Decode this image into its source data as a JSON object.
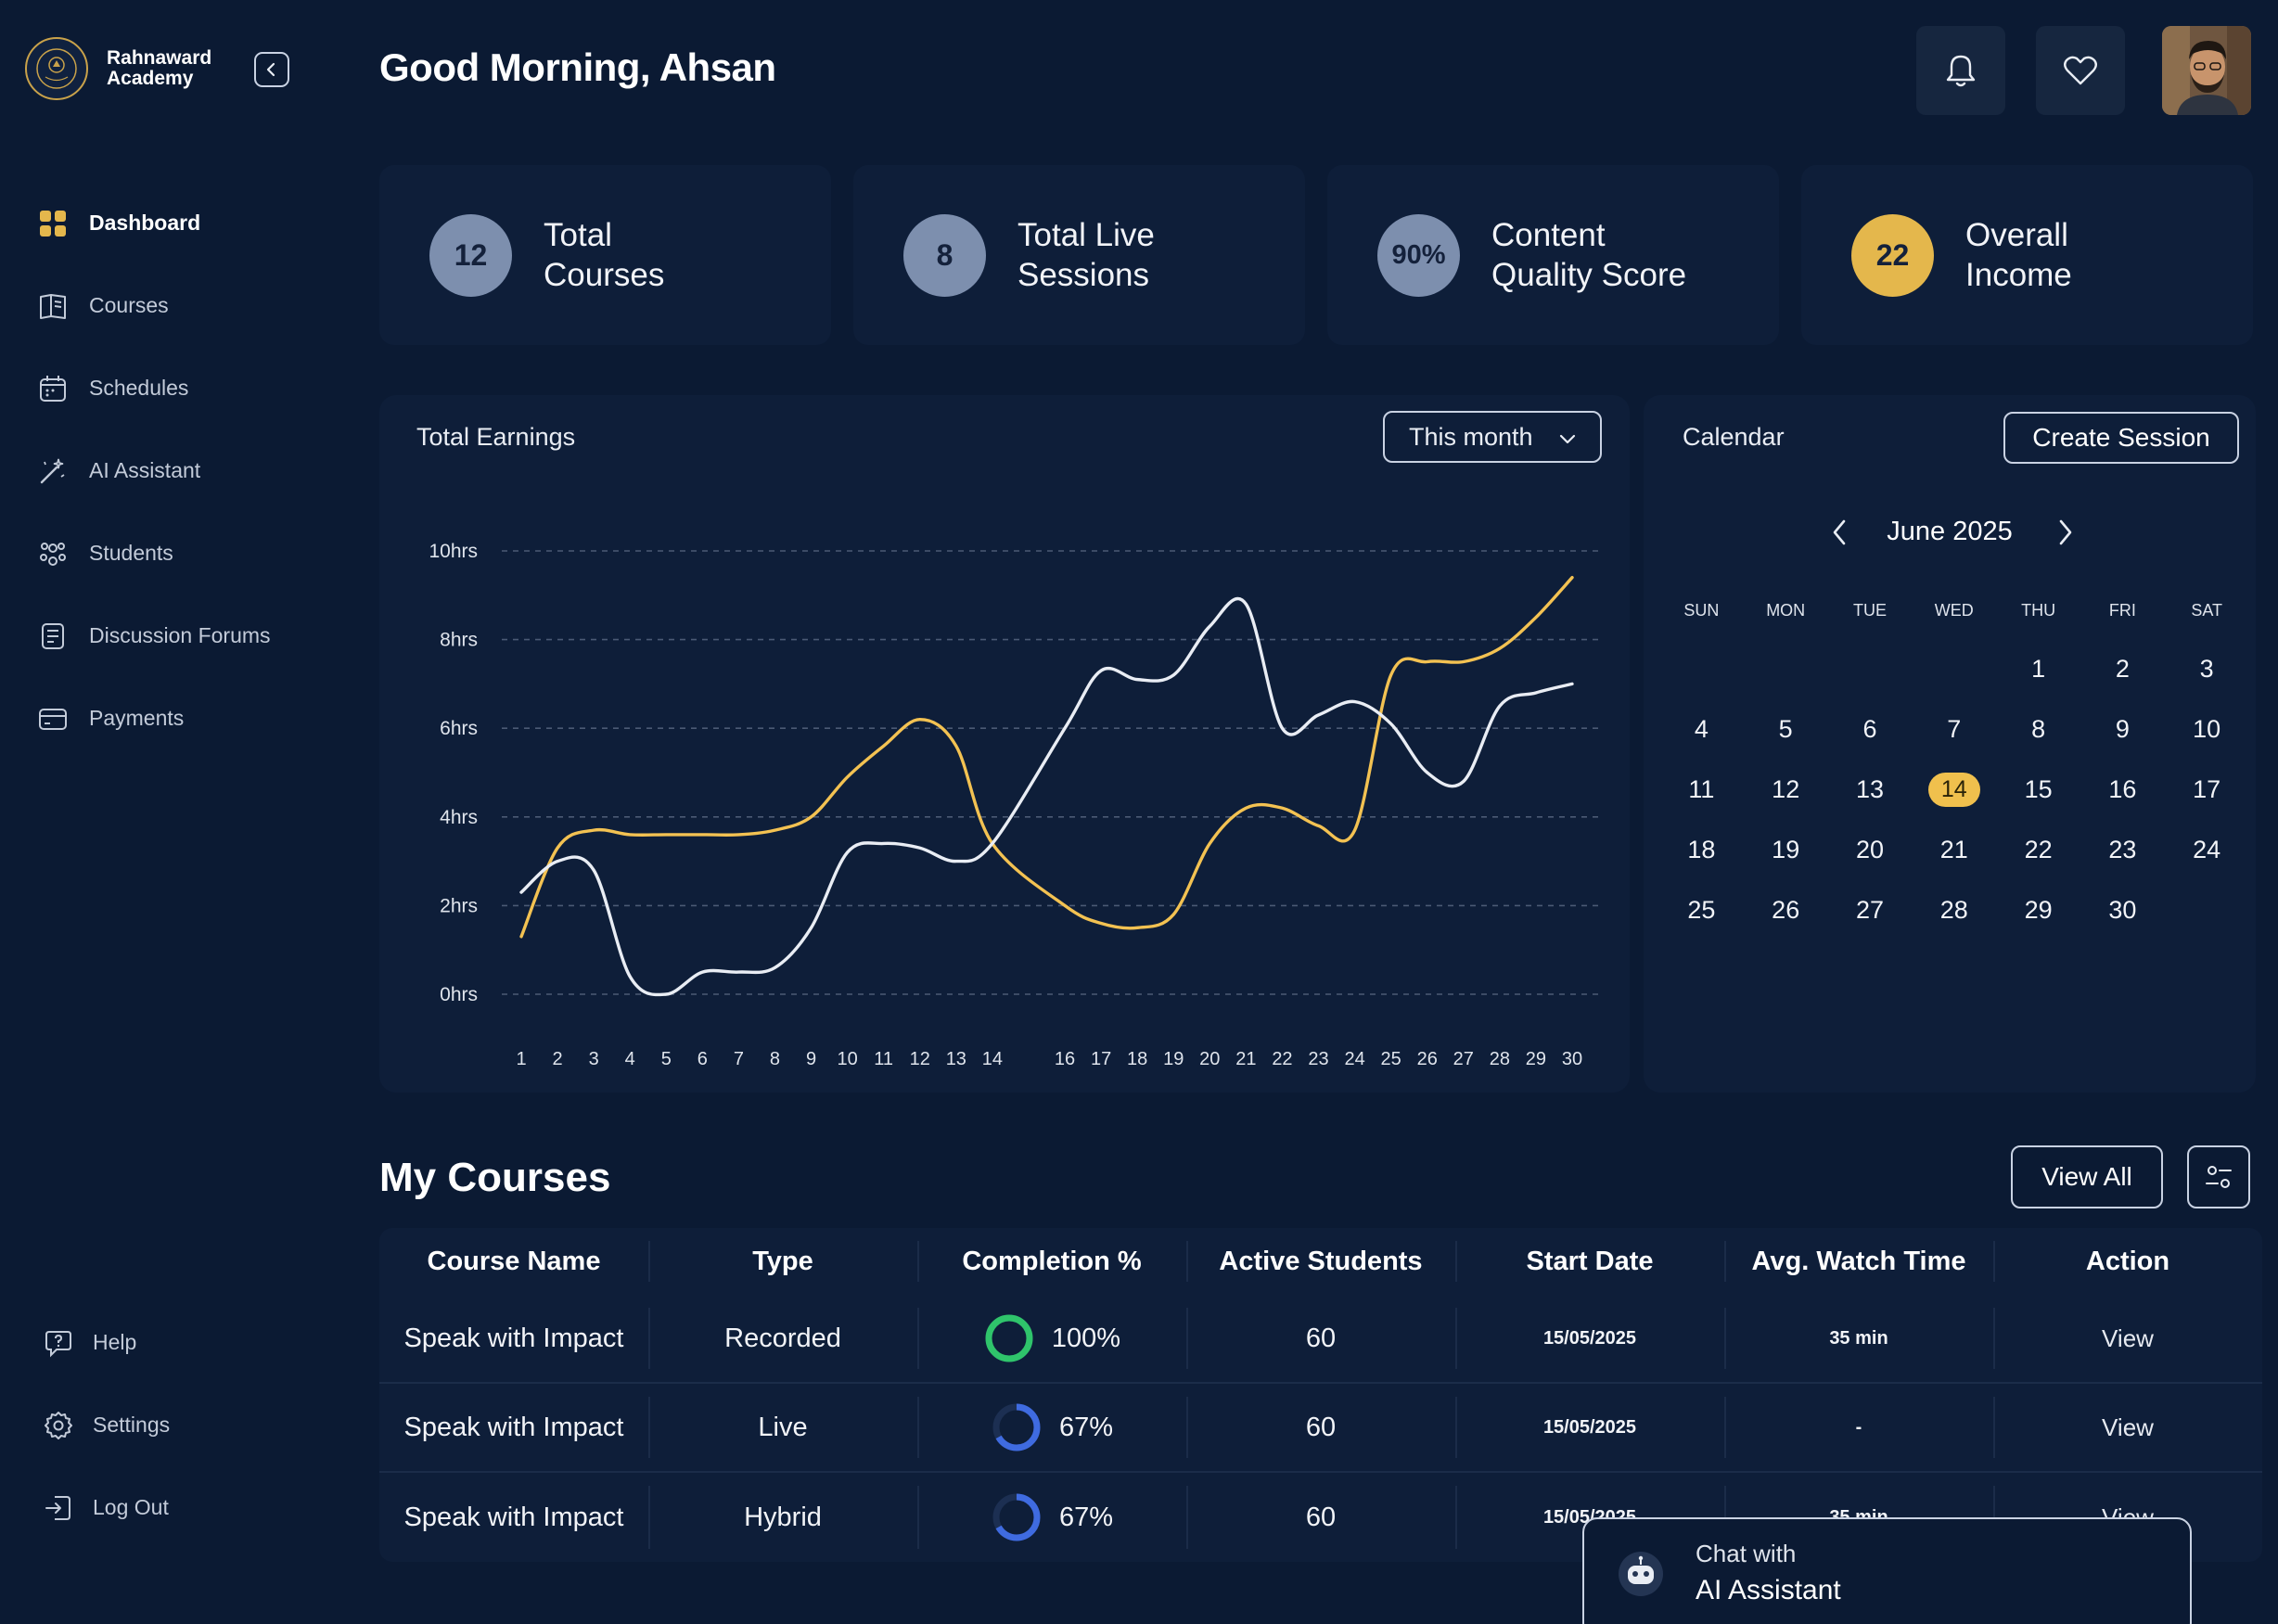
{
  "brand": {
    "name_line1": "Rahnaward",
    "name_line2": "Academy",
    "gold": "#e4b74c"
  },
  "sidebar": {
    "items": [
      {
        "label": "Dashboard",
        "icon": "grid-icon"
      },
      {
        "label": "Courses",
        "icon": "book-icon"
      },
      {
        "label": "Schedules",
        "icon": "calendar-icon"
      },
      {
        "label": "AI Assistant",
        "icon": "magic-wand-icon"
      },
      {
        "label": "Students",
        "icon": "users-icon"
      },
      {
        "label": "Discussion Forums",
        "icon": "document-icon"
      },
      {
        "label": "Payments",
        "icon": "card-icon"
      }
    ],
    "bottom": [
      {
        "label": "Help",
        "icon": "help-icon"
      },
      {
        "label": "Settings",
        "icon": "gear-icon"
      },
      {
        "label": "Log Out",
        "icon": "logout-icon"
      }
    ]
  },
  "header": {
    "greeting": "Good Morning, Ahsan"
  },
  "stats": [
    {
      "value": "12",
      "line1": "Total",
      "line2": "Courses"
    },
    {
      "value": "8",
      "line1": "Total Live",
      "line2": "Sessions"
    },
    {
      "value": "90%",
      "line1": "Content",
      "line2": "Quality Score"
    },
    {
      "value": "22",
      "line1": "Overall",
      "line2": "Income"
    }
  ],
  "earnings": {
    "title": "Total Earnings",
    "filter": "This month"
  },
  "chart_data": {
    "type": "line",
    "title": "Total Earnings",
    "y_tick_labels": [
      "0hrs",
      "2hrs",
      "4hrs",
      "6hrs",
      "8hrs",
      "10hrs"
    ],
    "ylim": [
      0,
      10
    ],
    "x": [
      1,
      2,
      3,
      4,
      5,
      6,
      7,
      8,
      9,
      10,
      11,
      12,
      13,
      14,
      16,
      17,
      18,
      19,
      20,
      21,
      22,
      23,
      24,
      25,
      26,
      27,
      28,
      29,
      30
    ],
    "series": [
      {
        "name": "gold",
        "color": "#f3c252",
        "values": [
          1.3,
          3.3,
          3.7,
          3.6,
          3.6,
          3.6,
          3.6,
          3.7,
          4.0,
          4.9,
          5.6,
          6.2,
          5.6,
          3.4,
          2.0,
          1.6,
          1.5,
          1.8,
          3.4,
          4.2,
          4.2,
          3.8,
          3.7,
          7.2,
          7.5,
          7.5,
          7.8,
          8.5,
          9.4
        ]
      },
      {
        "name": "white",
        "color": "#e9edf4",
        "values": [
          2.3,
          3.0,
          2.8,
          0.4,
          0.0,
          0.5,
          0.5,
          0.6,
          1.5,
          3.2,
          3.4,
          3.3,
          3.0,
          3.4,
          6.0,
          7.3,
          7.1,
          7.2,
          8.3,
          8.8,
          6.0,
          6.3,
          6.6,
          6.1,
          5.0,
          4.8,
          6.5,
          6.8,
          7.0
        ]
      }
    ]
  },
  "calendar": {
    "title": "Calendar",
    "create_label": "Create Session",
    "month_label": "June 2025",
    "weekdays": [
      "SUN",
      "MON",
      "TUE",
      "WED",
      "THU",
      "FRI",
      "SAT"
    ],
    "weeks": [
      [
        "",
        "",
        "",
        "",
        "1",
        "2",
        "3"
      ],
      [
        "4",
        "5",
        "6",
        "7",
        "8",
        "9",
        "10"
      ],
      [
        "11",
        "12",
        "13",
        "14",
        "15",
        "16",
        "17"
      ],
      [
        "18",
        "19",
        "20",
        "21",
        "22",
        "23",
        "24"
      ],
      [
        "25",
        "26",
        "27",
        "28",
        "29",
        "30",
        ""
      ]
    ],
    "today": "14",
    "highlight": "#f0c04d"
  },
  "courses": {
    "title": "My Courses",
    "view_all": "View All",
    "columns": [
      "Course Name",
      "Type",
      "Completion %",
      "Active Students",
      "Start Date",
      "Avg. Watch Time",
      "Action"
    ],
    "rows": [
      {
        "name": "Speak with Impact",
        "type": "Recorded",
        "completion": "100%",
        "completion_value": 100,
        "students": "60",
        "start": "15/05/2025",
        "watch": "35 min",
        "action": "View",
        "ring_color": "#2fc46b"
      },
      {
        "name": "Speak with Impact",
        "type": "Live",
        "completion": "67%",
        "completion_value": 67,
        "students": "60",
        "start": "15/05/2025",
        "watch": "-",
        "action": "View",
        "ring_color": "#3f6be0"
      },
      {
        "name": "Speak with Impact",
        "type": "Hybrid",
        "completion": "67%",
        "completion_value": 67,
        "students": "60",
        "start": "15/05/2025",
        "watch": "35 min",
        "action": "View",
        "ring_color": "#3f6be0"
      }
    ]
  },
  "chat": {
    "line1": "Chat with",
    "line2": "AI Assistant"
  }
}
